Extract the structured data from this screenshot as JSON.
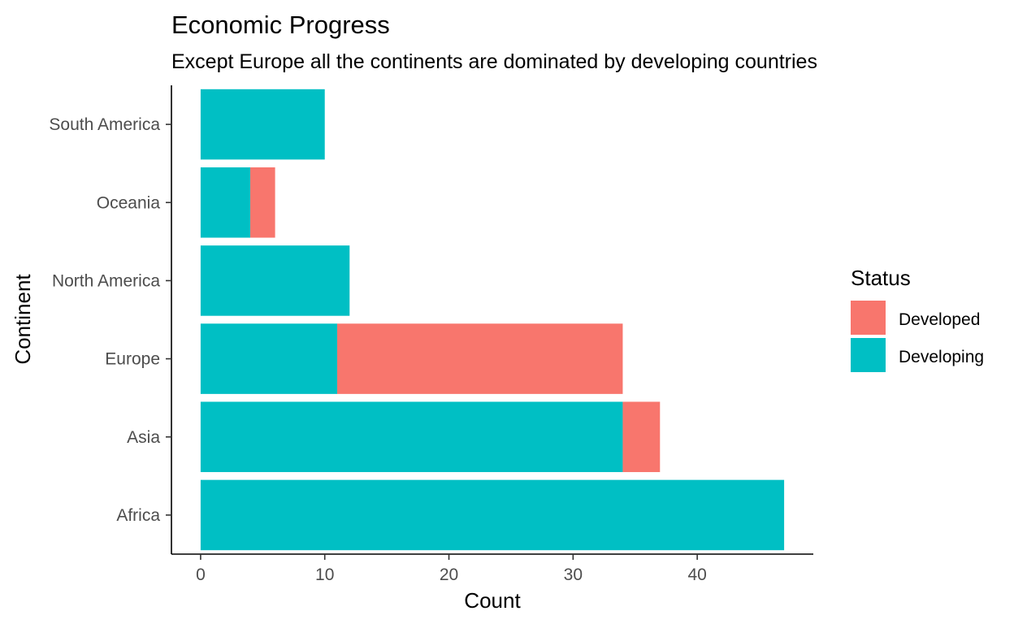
{
  "chart_data": {
    "type": "bar",
    "orientation": "horizontal",
    "stacked": true,
    "title": "Economic Progress",
    "subtitle": "Except Europe all the continents are dominated by developing countries",
    "xlabel": "Count",
    "ylabel": "Continent",
    "categories": [
      "Africa",
      "Asia",
      "Europe",
      "North America",
      "Oceania",
      "South America"
    ],
    "series": [
      {
        "name": "Developing",
        "color": "#00BFC4",
        "values": [
          47,
          34,
          11,
          12,
          4,
          10
        ]
      },
      {
        "name": "Developed",
        "color": "#F8766D",
        "values": [
          0,
          3,
          23,
          0,
          2,
          0
        ]
      }
    ],
    "xlim": [
      -2.35,
      49.35
    ],
    "xticks": [
      0,
      10,
      20,
      30,
      40
    ],
    "grid": false,
    "legend": {
      "title": "Status",
      "position": "right",
      "entries": [
        "Developed",
        "Developing"
      ]
    }
  }
}
